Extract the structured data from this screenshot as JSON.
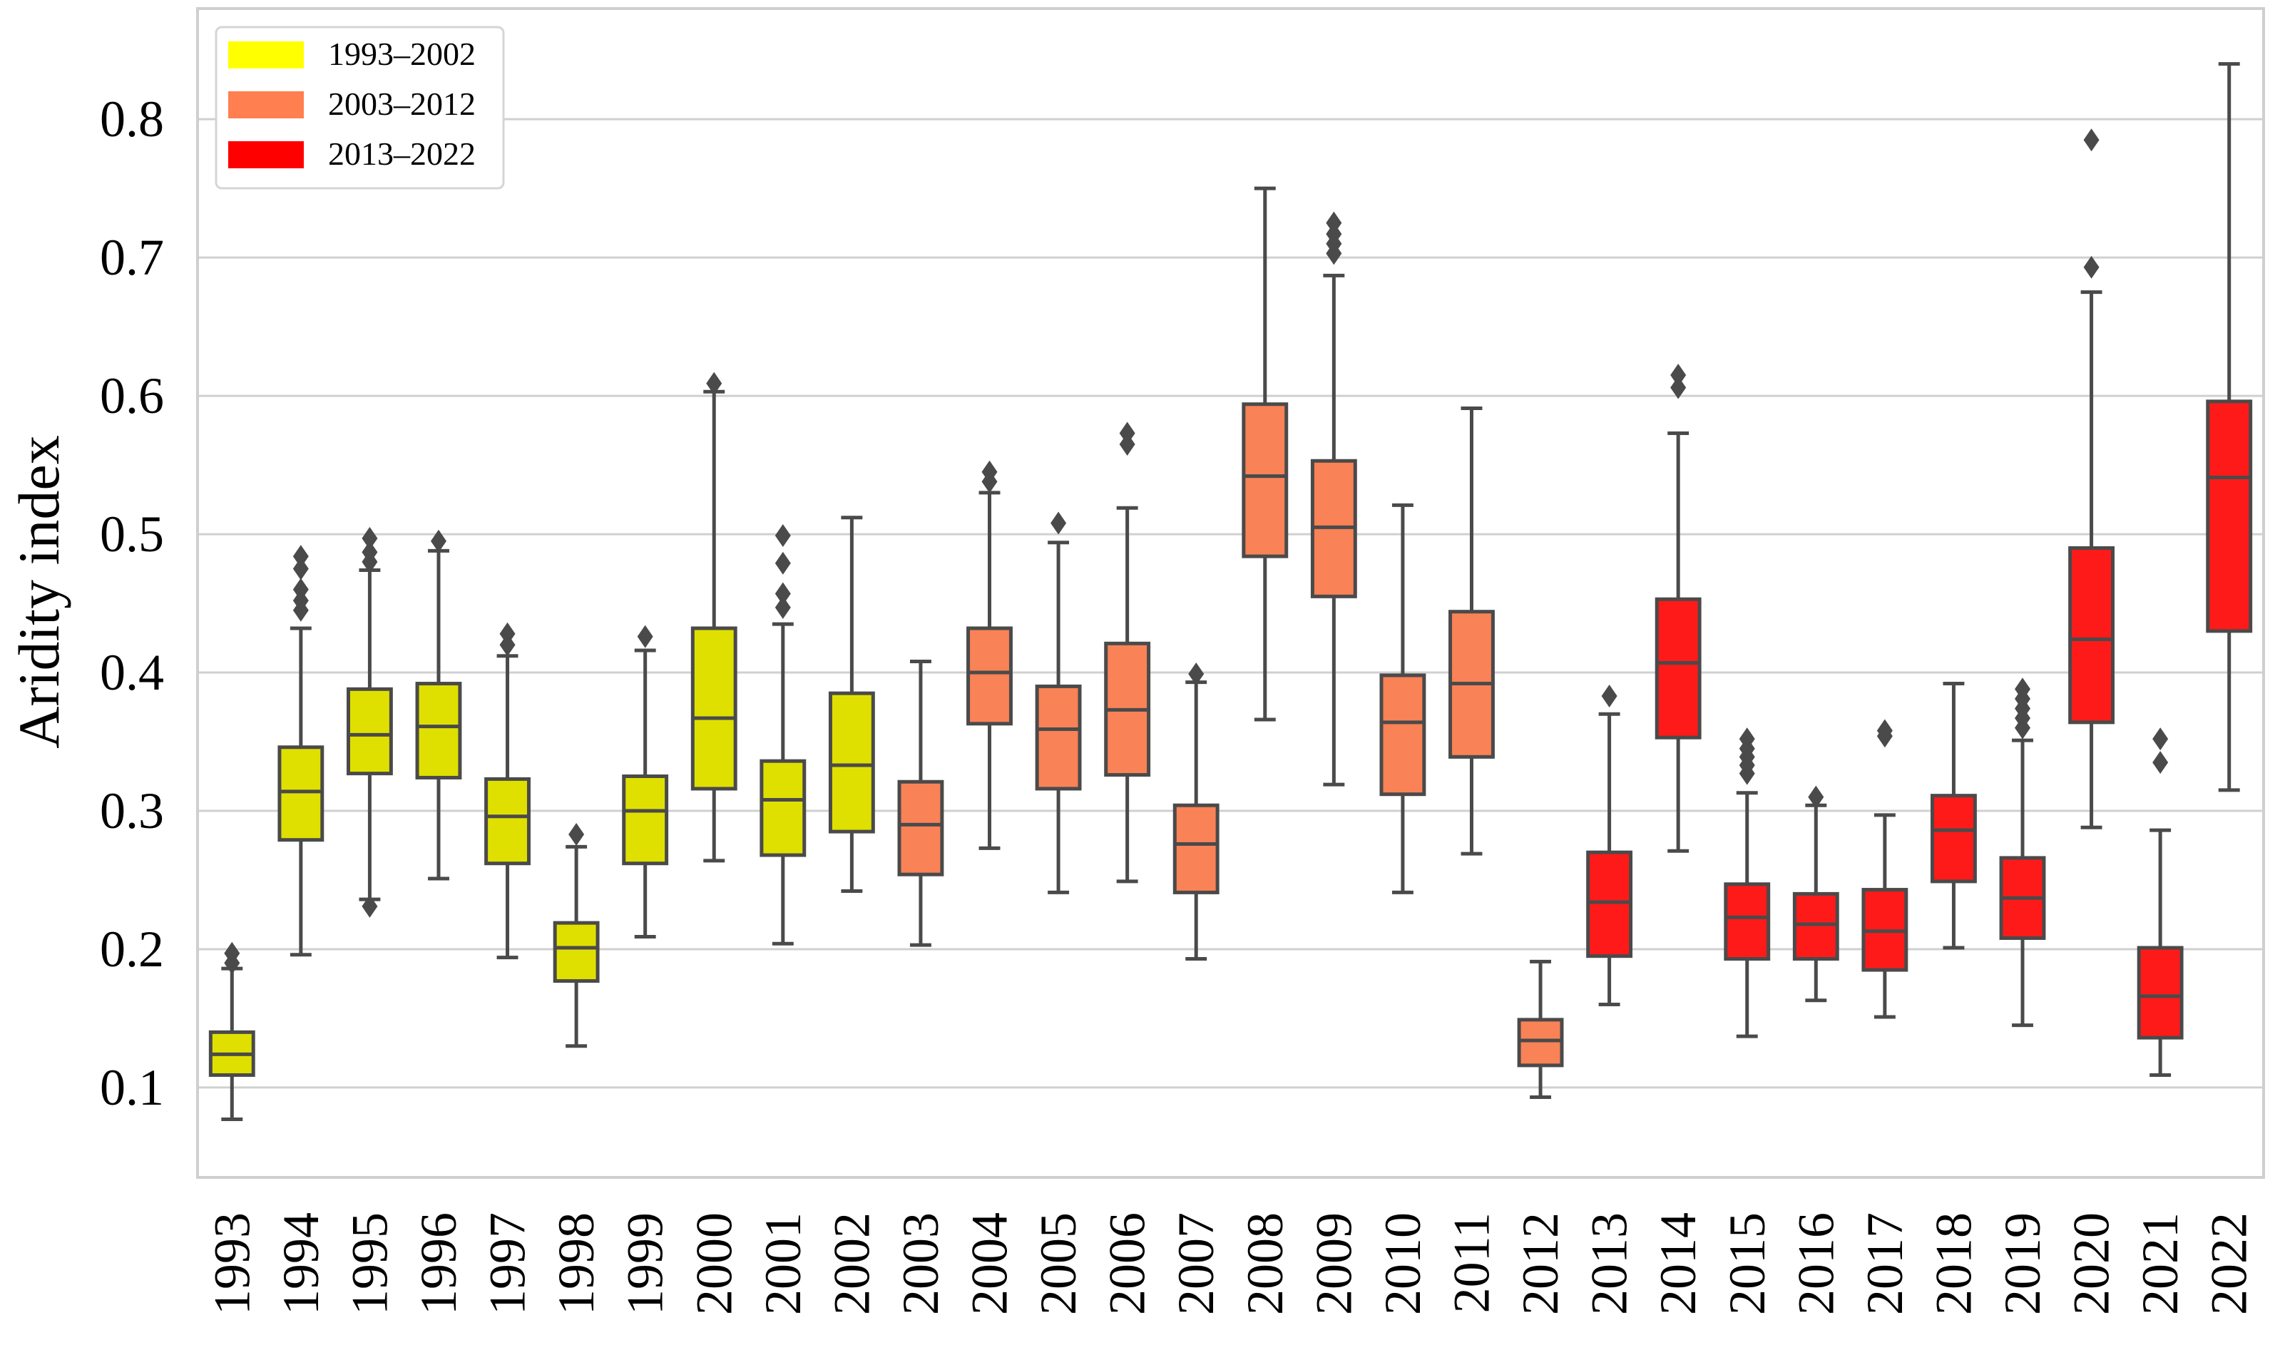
{
  "chart_data": {
    "type": "box",
    "title": "",
    "xlabel": "",
    "ylabel": "Aridity index",
    "ylim": [
      0.035,
      0.88
    ],
    "yticks": [
      0.1,
      0.2,
      0.3,
      0.4,
      0.5,
      0.6,
      0.7,
      0.8
    ],
    "ytick_labels": [
      "0.1",
      "0.2",
      "0.3",
      "0.4",
      "0.5",
      "0.6",
      "0.7",
      "0.8"
    ],
    "grid": "horizontal",
    "legend_position": "top-left",
    "legend": [
      {
        "label": "1993–2002",
        "color": "#ffff00"
      },
      {
        "label": "2003–2012",
        "color": "#ff7f50"
      },
      {
        "label": "2013–2022",
        "color": "#ff0000"
      }
    ],
    "box_colors": {
      "1993–2002": "#e0e000",
      "2003–2012": "#f98257",
      "2013–2022": "#ff1a1a"
    },
    "boxes": [
      {
        "year": "1993",
        "group": "1993–2002",
        "whisker_low": 0.077,
        "q1": 0.109,
        "median": 0.124,
        "q3": 0.14,
        "whisker_high": 0.186,
        "outliers": [
          0.19,
          0.197
        ]
      },
      {
        "year": "1994",
        "group": "1993–2002",
        "whisker_low": 0.196,
        "q1": 0.279,
        "median": 0.314,
        "q3": 0.346,
        "whisker_high": 0.432,
        "outliers": [
          0.445,
          0.452,
          0.46,
          0.475,
          0.484
        ]
      },
      {
        "year": "1995",
        "group": "1993–2002",
        "whisker_low": 0.236,
        "q1": 0.327,
        "median": 0.355,
        "q3": 0.388,
        "whisker_high": 0.474,
        "outliers": [
          0.231,
          0.48,
          0.487,
          0.497
        ]
      },
      {
        "year": "1996",
        "group": "1993–2002",
        "whisker_low": 0.251,
        "q1": 0.324,
        "median": 0.361,
        "q3": 0.392,
        "whisker_high": 0.488,
        "outliers": [
          0.495
        ]
      },
      {
        "year": "1997",
        "group": "1993–2002",
        "whisker_low": 0.194,
        "q1": 0.262,
        "median": 0.296,
        "q3": 0.323,
        "whisker_high": 0.412,
        "outliers": [
          0.42,
          0.428
        ]
      },
      {
        "year": "1998",
        "group": "1993–2002",
        "whisker_low": 0.13,
        "q1": 0.177,
        "median": 0.201,
        "q3": 0.219,
        "whisker_high": 0.274,
        "outliers": [
          0.283
        ]
      },
      {
        "year": "1999",
        "group": "1993–2002",
        "whisker_low": 0.209,
        "q1": 0.262,
        "median": 0.3,
        "q3": 0.325,
        "whisker_high": 0.416,
        "outliers": [
          0.426
        ]
      },
      {
        "year": "2000",
        "group": "1993–2002",
        "whisker_low": 0.264,
        "q1": 0.316,
        "median": 0.367,
        "q3": 0.432,
        "whisker_high": 0.603,
        "outliers": [
          0.609
        ]
      },
      {
        "year": "2001",
        "group": "1993–2002",
        "whisker_low": 0.204,
        "q1": 0.268,
        "median": 0.308,
        "q3": 0.336,
        "whisker_high": 0.435,
        "outliers": [
          0.447,
          0.457,
          0.479,
          0.499
        ]
      },
      {
        "year": "2002",
        "group": "1993–2002",
        "whisker_low": 0.242,
        "q1": 0.285,
        "median": 0.333,
        "q3": 0.385,
        "whisker_high": 0.512,
        "outliers": []
      },
      {
        "year": "2003",
        "group": "2003–2012",
        "whisker_low": 0.203,
        "q1": 0.254,
        "median": 0.29,
        "q3": 0.321,
        "whisker_high": 0.408,
        "outliers": []
      },
      {
        "year": "2004",
        "group": "2003–2012",
        "whisker_low": 0.273,
        "q1": 0.363,
        "median": 0.4,
        "q3": 0.432,
        "whisker_high": 0.53,
        "outliers": [
          0.538,
          0.545
        ]
      },
      {
        "year": "2005",
        "group": "2003–2012",
        "whisker_low": 0.241,
        "q1": 0.316,
        "median": 0.359,
        "q3": 0.39,
        "whisker_high": 0.494,
        "outliers": [
          0.508
        ]
      },
      {
        "year": "2006",
        "group": "2003–2012",
        "whisker_low": 0.249,
        "q1": 0.326,
        "median": 0.373,
        "q3": 0.421,
        "whisker_high": 0.519,
        "outliers": [
          0.565,
          0.573
        ]
      },
      {
        "year": "2007",
        "group": "2003–2012",
        "whisker_low": 0.193,
        "q1": 0.241,
        "median": 0.276,
        "q3": 0.304,
        "whisker_high": 0.393,
        "outliers": [
          0.399
        ]
      },
      {
        "year": "2008",
        "group": "2003–2012",
        "whisker_low": 0.366,
        "q1": 0.484,
        "median": 0.542,
        "q3": 0.594,
        "whisker_high": 0.75,
        "outliers": []
      },
      {
        "year": "2009",
        "group": "2003–2012",
        "whisker_low": 0.319,
        "q1": 0.455,
        "median": 0.505,
        "q3": 0.553,
        "whisker_high": 0.687,
        "outliers": [
          0.703,
          0.71,
          0.717,
          0.725
        ]
      },
      {
        "year": "2010",
        "group": "2003–2012",
        "whisker_low": 0.241,
        "q1": 0.312,
        "median": 0.364,
        "q3": 0.398,
        "whisker_high": 0.521,
        "outliers": []
      },
      {
        "year": "2011",
        "group": "2003–2012",
        "whisker_low": 0.269,
        "q1": 0.339,
        "median": 0.392,
        "q3": 0.444,
        "whisker_high": 0.591,
        "outliers": []
      },
      {
        "year": "2012",
        "group": "2003–2012",
        "whisker_low": 0.093,
        "q1": 0.116,
        "median": 0.134,
        "q3": 0.149,
        "whisker_high": 0.191,
        "outliers": []
      },
      {
        "year": "2013",
        "group": "2013–2022",
        "whisker_low": 0.16,
        "q1": 0.195,
        "median": 0.234,
        "q3": 0.27,
        "whisker_high": 0.37,
        "outliers": [
          0.383
        ]
      },
      {
        "year": "2014",
        "group": "2013–2022",
        "whisker_low": 0.271,
        "q1": 0.353,
        "median": 0.407,
        "q3": 0.453,
        "whisker_high": 0.573,
        "outliers": [
          0.606,
          0.615
        ]
      },
      {
        "year": "2015",
        "group": "2013–2022",
        "whisker_low": 0.137,
        "q1": 0.193,
        "median": 0.223,
        "q3": 0.247,
        "whisker_high": 0.313,
        "outliers": [
          0.327,
          0.333,
          0.339,
          0.345,
          0.352
        ]
      },
      {
        "year": "2016",
        "group": "2013–2022",
        "whisker_low": 0.163,
        "q1": 0.193,
        "median": 0.218,
        "q3": 0.24,
        "whisker_high": 0.304,
        "outliers": [
          0.31
        ]
      },
      {
        "year": "2017",
        "group": "2013–2022",
        "whisker_low": 0.151,
        "q1": 0.185,
        "median": 0.213,
        "q3": 0.243,
        "whisker_high": 0.297,
        "outliers": [
          0.354,
          0.358
        ]
      },
      {
        "year": "2018",
        "group": "2013–2022",
        "whisker_low": 0.201,
        "q1": 0.249,
        "median": 0.286,
        "q3": 0.311,
        "whisker_high": 0.392,
        "outliers": []
      },
      {
        "year": "2019",
        "group": "2013–2022",
        "whisker_low": 0.145,
        "q1": 0.208,
        "median": 0.237,
        "q3": 0.266,
        "whisker_high": 0.351,
        "outliers": [
          0.36,
          0.367,
          0.374,
          0.381,
          0.388
        ]
      },
      {
        "year": "2020",
        "group": "2013–2022",
        "whisker_low": 0.288,
        "q1": 0.364,
        "median": 0.424,
        "q3": 0.49,
        "whisker_high": 0.675,
        "outliers": [
          0.693,
          0.785
        ]
      },
      {
        "year": "2021",
        "group": "2013–2022",
        "whisker_low": 0.109,
        "q1": 0.136,
        "median": 0.166,
        "q3": 0.201,
        "whisker_high": 0.286,
        "outliers": [
          0.335,
          0.352
        ]
      },
      {
        "year": "2022",
        "group": "2013–2022",
        "whisker_low": 0.315,
        "q1": 0.43,
        "median": 0.541,
        "q3": 0.596,
        "whisker_high": 0.84,
        "outliers": []
      }
    ]
  }
}
